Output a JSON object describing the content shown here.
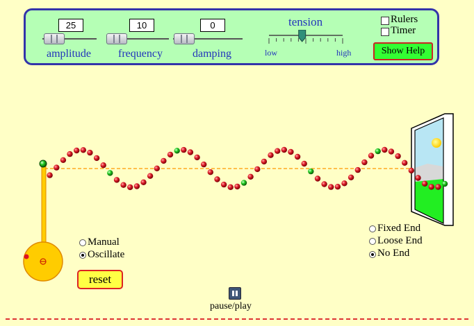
{
  "controls": {
    "amplitude": {
      "label": "amplitude",
      "value": "25"
    },
    "frequency": {
      "label": "frequency",
      "value": "10"
    },
    "damping": {
      "label": "damping",
      "value": "0"
    },
    "tension": {
      "label": "tension",
      "low": "low",
      "high": "high",
      "level": 0.45
    }
  },
  "options": {
    "rulers": {
      "label": "Rulers",
      "checked": false
    },
    "timer": {
      "label": "Timer",
      "checked": false
    },
    "help_label": "Show Help"
  },
  "mode": {
    "manual": "Manual",
    "oscillate": "Oscillate",
    "selected": "Oscillate",
    "reset_label": "reset"
  },
  "end_type": {
    "fixed": "Fixed End",
    "loose": "Loose End",
    "none": "No End",
    "selected": "No End"
  },
  "playback": {
    "pause_play_label": "pause/play"
  },
  "colors": {
    "bead": "#dd1122",
    "marker_bead": "#22cc22",
    "equilibrium_line": "#ff9900",
    "oscillator": "#ffcc00",
    "panel_border": "#3333aa",
    "panel_bg": "#b5ffb5"
  }
}
